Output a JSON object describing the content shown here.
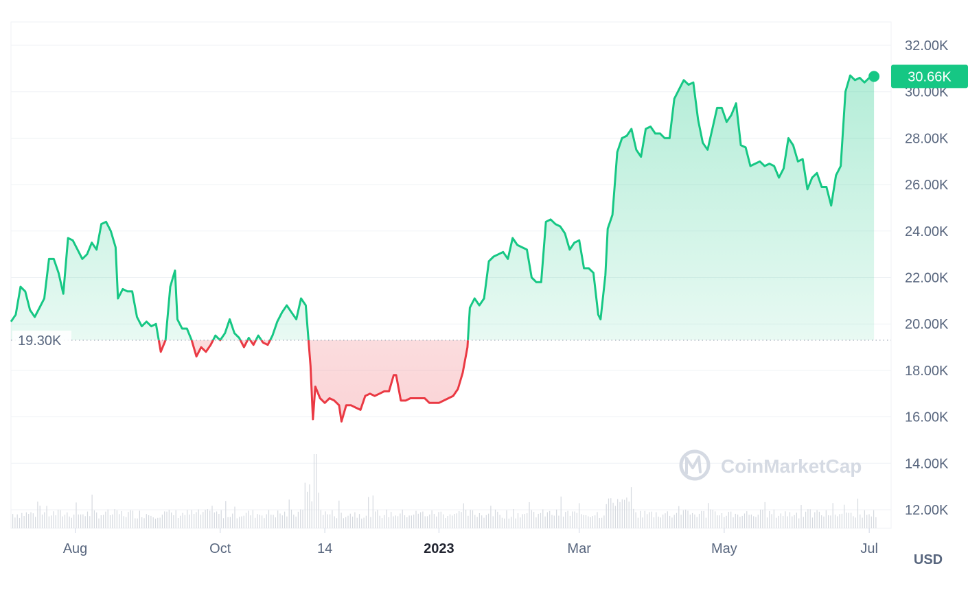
{
  "chart_data": {
    "type": "area",
    "y_axis_ticks": [
      "12.00K",
      "14.00K",
      "16.00K",
      "18.00K",
      "20.00K",
      "22.00K",
      "24.00K",
      "26.00K",
      "28.00K",
      "30.00K",
      "32.00K"
    ],
    "y_tick_values": [
      12000,
      14000,
      16000,
      18000,
      20000,
      22000,
      24000,
      26000,
      28000,
      30000,
      32000
    ],
    "ylim": [
      11300,
      33000
    ],
    "x_axis_ticks": [
      {
        "label": "Aug",
        "date": "2022-08-01",
        "bold": false
      },
      {
        "label": "Oct",
        "date": "2022-10-01",
        "bold": false
      },
      {
        "label": "14",
        "date": "2022-11-14",
        "bold": false
      },
      {
        "label": "2023",
        "date": "2023-01-01",
        "bold": true
      },
      {
        "label": "Mar",
        "date": "2023-03-01",
        "bold": false
      },
      {
        "label": "May",
        "date": "2023-05-01",
        "bold": false
      },
      {
        "label": "Jul",
        "date": "2023-07-01",
        "bold": false
      }
    ],
    "x_range": [
      "2022-07-05",
      "2023-07-05"
    ],
    "baseline": {
      "value": 19300,
      "label": "19.30K"
    },
    "current": {
      "value": 30660,
      "label": "30.66K"
    },
    "currency_label": "USD",
    "watermark": "CoinMarketCap",
    "colors": {
      "up": "#16c784",
      "down": "#ea3943",
      "grid": "#eff2f5",
      "axis_text": "#58667e",
      "volume": "#d5d9df"
    },
    "series": [
      {
        "values": [
          [
            "2022-07-05",
            20100
          ],
          [
            "2022-07-07",
            20400
          ],
          [
            "2022-07-09",
            21600
          ],
          [
            "2022-07-11",
            21400
          ],
          [
            "2022-07-13",
            20600
          ],
          [
            "2022-07-15",
            20300
          ],
          [
            "2022-07-17",
            20700
          ],
          [
            "2022-07-19",
            21100
          ],
          [
            "2022-07-21",
            22800
          ],
          [
            "2022-07-23",
            22800
          ],
          [
            "2022-07-25",
            22200
          ],
          [
            "2022-07-27",
            21300
          ],
          [
            "2022-07-29",
            23700
          ],
          [
            "2022-07-31",
            23600
          ],
          [
            "2022-08-02",
            23200
          ],
          [
            "2022-08-04",
            22800
          ],
          [
            "2022-08-06",
            23000
          ],
          [
            "2022-08-08",
            23500
          ],
          [
            "2022-08-10",
            23200
          ],
          [
            "2022-08-12",
            24300
          ],
          [
            "2022-08-14",
            24400
          ],
          [
            "2022-08-16",
            24000
          ],
          [
            "2022-08-18",
            23300
          ],
          [
            "2022-08-19",
            21100
          ],
          [
            "2022-08-21",
            21500
          ],
          [
            "2022-08-23",
            21400
          ],
          [
            "2022-08-25",
            21400
          ],
          [
            "2022-08-27",
            20300
          ],
          [
            "2022-08-29",
            19900
          ],
          [
            "2022-08-31",
            20100
          ],
          [
            "2022-09-02",
            19900
          ],
          [
            "2022-09-04",
            20000
          ],
          [
            "2022-09-06",
            18800
          ],
          [
            "2022-09-08",
            19300
          ],
          [
            "2022-09-10",
            21600
          ],
          [
            "2022-09-12",
            22300
          ],
          [
            "2022-09-13",
            20200
          ],
          [
            "2022-09-15",
            19800
          ],
          [
            "2022-09-17",
            19800
          ],
          [
            "2022-09-19",
            19300
          ],
          [
            "2022-09-21",
            18600
          ],
          [
            "2022-09-23",
            19000
          ],
          [
            "2022-09-25",
            18800
          ],
          [
            "2022-09-27",
            19100
          ],
          [
            "2022-09-29",
            19500
          ],
          [
            "2022-10-01",
            19300
          ],
          [
            "2022-10-03",
            19600
          ],
          [
            "2022-10-05",
            20200
          ],
          [
            "2022-10-07",
            19600
          ],
          [
            "2022-10-09",
            19400
          ],
          [
            "2022-10-11",
            19000
          ],
          [
            "2022-10-13",
            19400
          ],
          [
            "2022-10-15",
            19100
          ],
          [
            "2022-10-17",
            19500
          ],
          [
            "2022-10-19",
            19200
          ],
          [
            "2022-10-21",
            19100
          ],
          [
            "2022-10-23",
            19500
          ],
          [
            "2022-10-25",
            20100
          ],
          [
            "2022-10-27",
            20500
          ],
          [
            "2022-10-29",
            20800
          ],
          [
            "2022-10-31",
            20500
          ],
          [
            "2022-11-02",
            20200
          ],
          [
            "2022-11-04",
            21100
          ],
          [
            "2022-11-06",
            20800
          ],
          [
            "2022-11-08",
            18200
          ],
          [
            "2022-11-09",
            15900
          ],
          [
            "2022-11-10",
            17300
          ],
          [
            "2022-11-12",
            16800
          ],
          [
            "2022-11-14",
            16600
          ],
          [
            "2022-11-16",
            16800
          ],
          [
            "2022-11-18",
            16700
          ],
          [
            "2022-11-20",
            16500
          ],
          [
            "2022-11-21",
            15800
          ],
          [
            "2022-11-23",
            16500
          ],
          [
            "2022-11-25",
            16500
          ],
          [
            "2022-11-27",
            16400
          ],
          [
            "2022-11-29",
            16300
          ],
          [
            "2022-12-01",
            16900
          ],
          [
            "2022-12-03",
            17000
          ],
          [
            "2022-12-05",
            16900
          ],
          [
            "2022-12-07",
            17000
          ],
          [
            "2022-12-09",
            17100
          ],
          [
            "2022-12-11",
            17100
          ],
          [
            "2022-12-13",
            17800
          ],
          [
            "2022-12-14",
            17800
          ],
          [
            "2022-12-16",
            16700
          ],
          [
            "2022-12-18",
            16700
          ],
          [
            "2022-12-20",
            16800
          ],
          [
            "2022-12-22",
            16800
          ],
          [
            "2022-12-24",
            16800
          ],
          [
            "2022-12-26",
            16800
          ],
          [
            "2022-12-28",
            16600
          ],
          [
            "2022-12-30",
            16600
          ],
          [
            "2023-01-01",
            16600
          ],
          [
            "2023-01-03",
            16700
          ],
          [
            "2023-01-05",
            16800
          ],
          [
            "2023-01-07",
            16900
          ],
          [
            "2023-01-09",
            17200
          ],
          [
            "2023-01-11",
            17900
          ],
          [
            "2023-01-13",
            19000
          ],
          [
            "2023-01-14",
            20700
          ],
          [
            "2023-01-16",
            21100
          ],
          [
            "2023-01-18",
            20800
          ],
          [
            "2023-01-20",
            21100
          ],
          [
            "2023-01-22",
            22700
          ],
          [
            "2023-01-24",
            22900
          ],
          [
            "2023-01-26",
            23000
          ],
          [
            "2023-01-28",
            23100
          ],
          [
            "2023-01-30",
            22800
          ],
          [
            "2023-02-01",
            23700
          ],
          [
            "2023-02-03",
            23400
          ],
          [
            "2023-02-05",
            23300
          ],
          [
            "2023-02-07",
            23200
          ],
          [
            "2023-02-09",
            22000
          ],
          [
            "2023-02-11",
            21800
          ],
          [
            "2023-02-13",
            21800
          ],
          [
            "2023-02-15",
            24400
          ],
          [
            "2023-02-17",
            24500
          ],
          [
            "2023-02-19",
            24300
          ],
          [
            "2023-02-21",
            24200
          ],
          [
            "2023-02-23",
            23900
          ],
          [
            "2023-02-25",
            23200
          ],
          [
            "2023-02-27",
            23500
          ],
          [
            "2023-03-01",
            23600
          ],
          [
            "2023-03-03",
            22400
          ],
          [
            "2023-03-05",
            22400
          ],
          [
            "2023-03-07",
            22200
          ],
          [
            "2023-03-09",
            20400
          ],
          [
            "2023-03-10",
            20200
          ],
          [
            "2023-03-12",
            22100
          ],
          [
            "2023-03-13",
            24100
          ],
          [
            "2023-03-15",
            24700
          ],
          [
            "2023-03-17",
            27400
          ],
          [
            "2023-03-19",
            28000
          ],
          [
            "2023-03-21",
            28100
          ],
          [
            "2023-03-23",
            28400
          ],
          [
            "2023-03-25",
            27500
          ],
          [
            "2023-03-27",
            27200
          ],
          [
            "2023-03-29",
            28400
          ],
          [
            "2023-03-31",
            28500
          ],
          [
            "2023-04-02",
            28200
          ],
          [
            "2023-04-04",
            28200
          ],
          [
            "2023-04-06",
            28000
          ],
          [
            "2023-04-08",
            28000
          ],
          [
            "2023-04-10",
            29700
          ],
          [
            "2023-04-12",
            30100
          ],
          [
            "2023-04-14",
            30500
          ],
          [
            "2023-04-16",
            30300
          ],
          [
            "2023-04-18",
            30400
          ],
          [
            "2023-04-20",
            28800
          ],
          [
            "2023-04-22",
            27800
          ],
          [
            "2023-04-24",
            27500
          ],
          [
            "2023-04-26",
            28400
          ],
          [
            "2023-04-28",
            29300
          ],
          [
            "2023-04-30",
            29300
          ],
          [
            "2023-05-02",
            28700
          ],
          [
            "2023-05-04",
            29000
          ],
          [
            "2023-05-06",
            29500
          ],
          [
            "2023-05-08",
            27700
          ],
          [
            "2023-05-10",
            27600
          ],
          [
            "2023-05-12",
            26800
          ],
          [
            "2023-05-14",
            26900
          ],
          [
            "2023-05-16",
            27000
          ],
          [
            "2023-05-18",
            26800
          ],
          [
            "2023-05-20",
            26900
          ],
          [
            "2023-05-22",
            26800
          ],
          [
            "2023-05-24",
            26300
          ],
          [
            "2023-05-26",
            26700
          ],
          [
            "2023-05-28",
            28000
          ],
          [
            "2023-05-30",
            27700
          ],
          [
            "2023-06-01",
            27000
          ],
          [
            "2023-06-03",
            27100
          ],
          [
            "2023-06-05",
            25800
          ],
          [
            "2023-06-07",
            26300
          ],
          [
            "2023-06-09",
            26500
          ],
          [
            "2023-06-11",
            25900
          ],
          [
            "2023-06-13",
            25900
          ],
          [
            "2023-06-15",
            25100
          ],
          [
            "2023-06-17",
            26400
          ],
          [
            "2023-06-19",
            26800
          ],
          [
            "2023-06-21",
            30000
          ],
          [
            "2023-06-23",
            30700
          ],
          [
            "2023-06-25",
            30500
          ],
          [
            "2023-06-27",
            30600
          ],
          [
            "2023-06-29",
            30400
          ],
          [
            "2023-07-01",
            30600
          ],
          [
            "2023-07-03",
            30660
          ]
        ]
      }
    ]
  }
}
